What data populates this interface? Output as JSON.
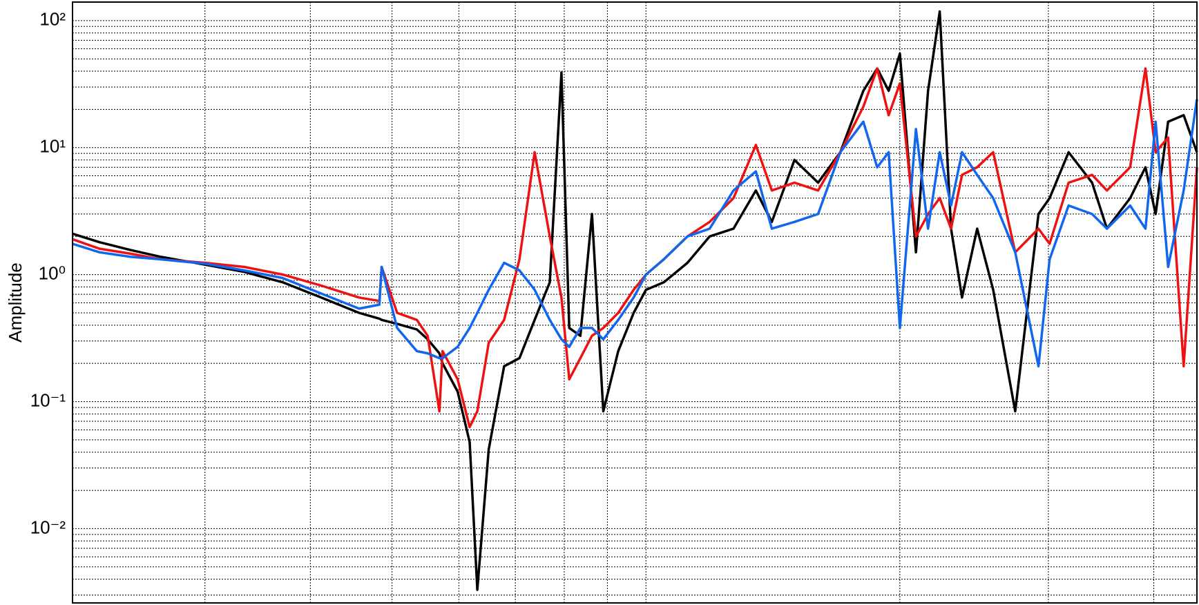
{
  "chart_data": {
    "type": "line",
    "y_label": "Amplitude",
    "x": [
      2.09,
      2.25,
      2.45,
      2.66,
      3.0,
      3.34,
      3.71,
      4.12,
      4.57,
      4.83,
      4.86,
      5.07,
      5.35,
      5.51,
      5.69,
      5.74,
      5.98,
      6.18,
      6.31,
      6.51,
      6.79,
      7.08,
      7.38,
      7.69,
      7.94,
      8.11,
      8.36,
      8.63,
      8.9,
      9.27,
      9.67,
      10,
      10.5,
      11.2,
      11.9,
      12.7,
      13.5,
      14.1,
      15.0,
      16.0,
      17.0,
      18.1,
      18.8,
      19.4,
      20.0,
      20.9,
      21.6,
      22.3,
      23.0,
      23.7,
      24.7,
      25.8,
      27.4,
      29.2,
      30.1,
      31.7,
      33.8,
      35.2,
      37.5,
      39.1,
      40.2,
      41.6,
      43.4,
      45.0
    ],
    "series": [
      {
        "color": "#000000",
        "values": [
          2.1,
          1.8,
          1.56,
          1.38,
          1.2,
          1.05,
          0.87,
          0.66,
          0.5,
          0.45,
          0.44,
          0.41,
          0.37,
          0.31,
          0.24,
          0.2,
          0.12,
          0.048,
          0.0033,
          0.042,
          0.19,
          0.22,
          0.44,
          0.87,
          39,
          0.38,
          0.33,
          3.0,
          0.084,
          0.25,
          0.5,
          0.76,
          0.87,
          1.24,
          2.0,
          2.3,
          4.6,
          2.6,
          8.0,
          5.3,
          9.2,
          28,
          42,
          28,
          55,
          1.5,
          28,
          118,
          2.3,
          0.66,
          2.3,
          0.76,
          0.084,
          3.0,
          4.0,
          9.2,
          5.3,
          2.3,
          4.0,
          7.0,
          3.0,
          16,
          18,
          9.2
        ]
      },
      {
        "color": "#ee1111",
        "values": [
          1.9,
          1.6,
          1.46,
          1.32,
          1.24,
          1.15,
          1.0,
          0.82,
          0.66,
          0.62,
          1.15,
          0.5,
          0.44,
          0.33,
          0.084,
          0.25,
          0.15,
          0.063,
          0.084,
          0.29,
          0.44,
          1.32,
          9.2,
          2.0,
          0.66,
          0.15,
          0.22,
          0.33,
          0.38,
          0.5,
          0.76,
          1.0,
          1.32,
          2.0,
          2.6,
          4.0,
          10.5,
          4.6,
          5.3,
          4.6,
          9.2,
          21,
          42,
          18,
          32,
          2.0,
          3.0,
          4.0,
          2.3,
          6.1,
          7.0,
          9.2,
          1.5,
          2.3,
          1.75,
          5.3,
          6.1,
          4.6,
          7.0,
          42,
          9.2,
          12,
          0.19,
          7.0
        ]
      },
      {
        "color": "#1166ee",
        "values": [
          1.75,
          1.5,
          1.38,
          1.32,
          1.22,
          1.08,
          0.94,
          0.71,
          0.54,
          0.58,
          1.15,
          0.38,
          0.25,
          0.24,
          0.22,
          0.22,
          0.27,
          0.38,
          0.5,
          0.76,
          1.24,
          1.08,
          0.76,
          0.44,
          0.31,
          0.27,
          0.38,
          0.38,
          0.31,
          0.44,
          0.66,
          1.0,
          1.32,
          2.0,
          2.3,
          4.6,
          6.5,
          2.3,
          2.6,
          3.0,
          9.2,
          16,
          7.0,
          9.2,
          0.38,
          14,
          2.3,
          9.2,
          3.5,
          9.2,
          6.1,
          4.0,
          1.5,
          0.19,
          1.32,
          3.5,
          3.0,
          2.3,
          3.5,
          2.3,
          16,
          1.15,
          4.6,
          24
        ]
      }
    ],
    "xlim": [
      2.09,
      45
    ],
    "xticks": [
      3,
      4,
      5,
      6,
      7,
      8,
      9,
      10,
      20,
      30,
      40
    ],
    "xlog": true,
    "ylim": [
      0.0026,
      140
    ],
    "ylog": true,
    "yticks": [
      {
        "value": 0.01,
        "label": "10⁻²"
      },
      {
        "value": 0.1,
        "label": "10⁻¹"
      },
      {
        "value": 1,
        "label": "10⁰"
      },
      {
        "value": 10,
        "label": "10¹"
      },
      {
        "value": 100,
        "label": "10²"
      }
    ],
    "grid": true,
    "minor_grid": true
  }
}
